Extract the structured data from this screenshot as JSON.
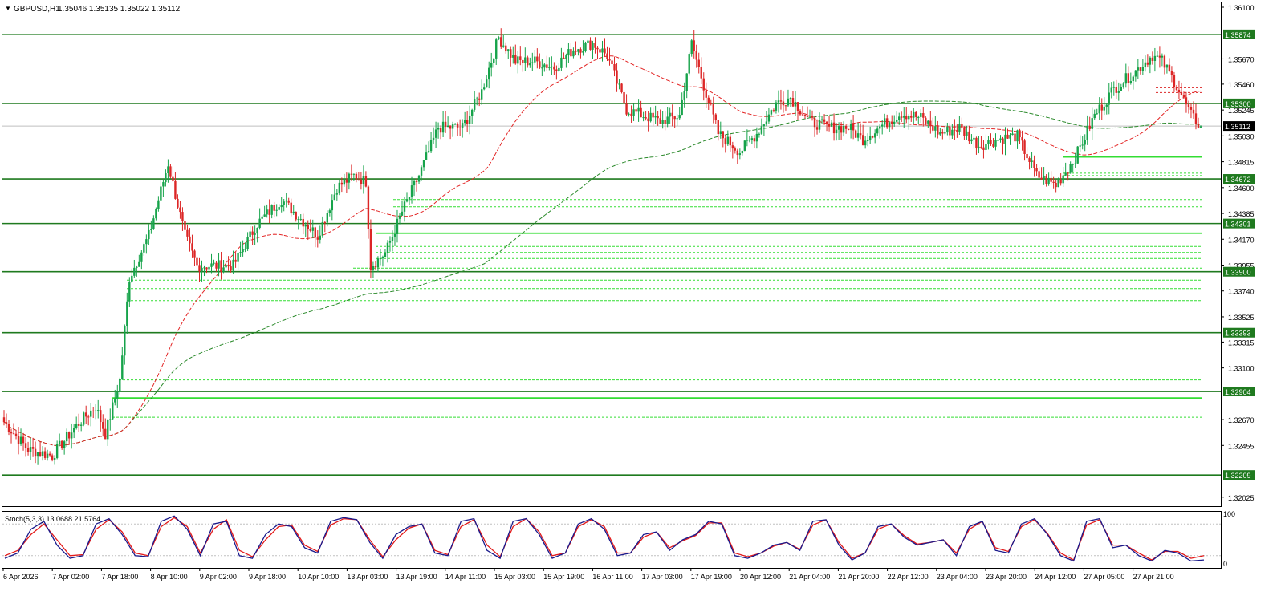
{
  "header": {
    "symbol": "GBPUSD,H1",
    "ohlc": "1.35046 1.35135 1.35022 1.35112"
  },
  "colors": {
    "bull": "#16a34a",
    "bear": "#dc2626",
    "level_line": "#1f7a1f",
    "zone_line": "#33dd33",
    "ma_fast": "#e32626",
    "ma_slow": "#2b8a2b",
    "stoch_main": "#1a1a8c",
    "stoch_signal": "#e31a1a",
    "highlight_bright": "#00cc00"
  },
  "price_axis": {
    "ticks": [
      "1.36100",
      "1.35670",
      "1.35460",
      "1.35245",
      "1.35030",
      "1.34815",
      "1.34600",
      "1.34385",
      "1.34170",
      "1.33955",
      "1.33740",
      "1.33525",
      "1.33315",
      "1.33100",
      "1.32670",
      "1.32455",
      "1.32025"
    ],
    "current_label": "1.35112"
  },
  "levels": [
    {
      "label": "1.35874",
      "value": 1.35874
    },
    {
      "label": "1.35300",
      "value": 1.353
    },
    {
      "label": "1.34672",
      "value": 1.34672
    },
    {
      "label": "1.34301",
      "value": 1.34301
    },
    {
      "label": "1.33900",
      "value": 1.339
    },
    {
      "label": "1.33393",
      "value": 1.33393
    },
    {
      "label": "1.32904",
      "value": 1.32904
    },
    {
      "label": "1.32209",
      "value": 1.32209
    }
  ],
  "time_axis": {
    "labels": [
      "6 Apr 2026",
      "7 Apr 02:00",
      "7 Apr 18:00",
      "8 Apr 10:00",
      "9 Apr 02:00",
      "9 Apr 18:00",
      "10 Apr 10:00",
      "13 Apr 03:00",
      "13 Apr 19:00",
      "14 Apr 11:00",
      "15 Apr 03:00",
      "15 Apr 19:00",
      "16 Apr 11:00",
      "17 Apr 03:00",
      "17 Apr 19:00",
      "20 Apr 12:00",
      "21 Apr 04:00",
      "21 Apr 20:00",
      "22 Apr 12:00",
      "23 Apr 04:00",
      "23 Apr 20:00",
      "24 Apr 12:00",
      "27 Apr 05:00",
      "27 Apr 21:00"
    ]
  },
  "stoch": {
    "label": "Stoch(5,3,3) 13.0688 21.5764",
    "axis_top": "100",
    "axis_bottom": "0"
  },
  "chart_data": {
    "type": "candlestick",
    "symbol": "GBPUSD",
    "timeframe": "H1",
    "y_range": [
      1.3195,
      1.3614
    ],
    "last_price": 1.35112,
    "anchors": [
      [
        0,
        1.3265
      ],
      [
        10,
        1.3242
      ],
      [
        20,
        1.3237
      ],
      [
        30,
        1.3262
      ],
      [
        38,
        1.3278
      ],
      [
        42,
        1.3255
      ],
      [
        48,
        1.33
      ],
      [
        52,
        1.3385
      ],
      [
        60,
        1.342
      ],
      [
        68,
        1.348
      ],
      [
        75,
        1.342
      ],
      [
        80,
        1.3395
      ],
      [
        88,
        1.3395
      ],
      [
        95,
        1.3395
      ],
      [
        105,
        1.343
      ],
      [
        115,
        1.345
      ],
      [
        125,
        1.343
      ],
      [
        130,
        1.342
      ],
      [
        138,
        1.346
      ],
      [
        145,
        1.347
      ],
      [
        150,
        1.3465
      ],
      [
        152,
        1.3395
      ],
      [
        158,
        1.3405
      ],
      [
        165,
        1.344
      ],
      [
        172,
        1.347
      ],
      [
        180,
        1.351
      ],
      [
        190,
        1.351
      ],
      [
        198,
        1.354
      ],
      [
        205,
        1.3585
      ],
      [
        212,
        1.3565
      ],
      [
        220,
        1.3565
      ],
      [
        228,
        1.356
      ],
      [
        236,
        1.3575
      ],
      [
        244,
        1.358
      ],
      [
        250,
        1.357
      ],
      [
        258,
        1.3525
      ],
      [
        265,
        1.352
      ],
      [
        272,
        1.3515
      ],
      [
        280,
        1.352
      ],
      [
        285,
        1.358
      ],
      [
        290,
        1.3545
      ],
      [
        296,
        1.3505
      ],
      [
        305,
        1.349
      ],
      [
        312,
        1.3505
      ],
      [
        320,
        1.353
      ],
      [
        326,
        1.3535
      ],
      [
        334,
        1.3515
      ],
      [
        342,
        1.351
      ],
      [
        350,
        1.351
      ],
      [
        356,
        1.35
      ],
      [
        364,
        1.3512
      ],
      [
        372,
        1.3522
      ],
      [
        380,
        1.3518
      ],
      [
        388,
        1.3505
      ],
      [
        396,
        1.351
      ],
      [
        404,
        1.3495
      ],
      [
        412,
        1.35
      ],
      [
        420,
        1.3503
      ],
      [
        428,
        1.347
      ],
      [
        436,
        1.3462
      ],
      [
        444,
        1.3485
      ],
      [
        452,
        1.352
      ],
      [
        460,
        1.3542
      ],
      [
        468,
        1.3555
      ],
      [
        476,
        1.357
      ],
      [
        480,
        1.3565
      ],
      [
        486,
        1.3545
      ],
      [
        492,
        1.352
      ],
      [
        496,
        1.3511
      ]
    ],
    "stoch_main": [
      15,
      25,
      70,
      85,
      40,
      15,
      20,
      80,
      90,
      60,
      20,
      18,
      85,
      95,
      70,
      20,
      80,
      85,
      20,
      15,
      60,
      80,
      75,
      35,
      25,
      85,
      92,
      88,
      45,
      15,
      60,
      75,
      80,
      25,
      20,
      85,
      90,
      30,
      15,
      85,
      90,
      60,
      15,
      25,
      80,
      90,
      70,
      20,
      25,
      60,
      65,
      30,
      50,
      60,
      85,
      80,
      20,
      15,
      25,
      40,
      45,
      30,
      85,
      88,
      40,
      12,
      25,
      75,
      80,
      55,
      40,
      45,
      50,
      20,
      75,
      85,
      30,
      25,
      80,
      90,
      60,
      20,
      10,
      85,
      90,
      35,
      40,
      20,
      10,
      30,
      25,
      10,
      12
    ],
    "stoch_signal": [
      20,
      30,
      60,
      80,
      50,
      20,
      22,
      70,
      88,
      65,
      25,
      20,
      75,
      92,
      75,
      25,
      70,
      88,
      30,
      18,
      50,
      75,
      78,
      40,
      28,
      78,
      90,
      88,
      50,
      18,
      50,
      72,
      80,
      30,
      22,
      75,
      88,
      40,
      18,
      75,
      90,
      65,
      20,
      25,
      75,
      88,
      75,
      25,
      25,
      55,
      65,
      35,
      48,
      58,
      82,
      82,
      25,
      18,
      25,
      38,
      45,
      32,
      78,
      88,
      45,
      15,
      25,
      70,
      80,
      58,
      42,
      45,
      50,
      25,
      70,
      85,
      35,
      28,
      75,
      88,
      62,
      25,
      12,
      78,
      88,
      40,
      40,
      25,
      12,
      28,
      28,
      15,
      20
    ],
    "stoch_levels": [
      80,
      20
    ]
  }
}
